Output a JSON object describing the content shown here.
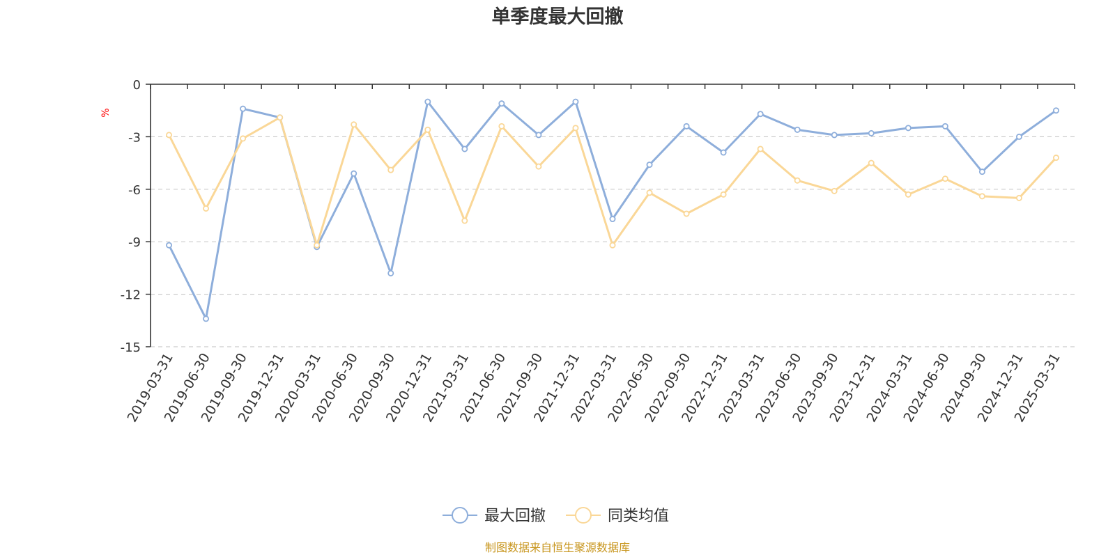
{
  "chart_data": {
    "type": "line",
    "title": "单季度最大回撤",
    "ylabel": "%",
    "ylim": [
      -15,
      0
    ],
    "yticks": [
      0,
      -3,
      -6,
      -9,
      -12,
      -15
    ],
    "grid": true,
    "legend_position": "bottom",
    "categories": [
      "2019-03-31",
      "2019-06-30",
      "2019-09-30",
      "2019-12-31",
      "2020-03-31",
      "2020-06-30",
      "2020-09-30",
      "2020-12-31",
      "2021-03-31",
      "2021-06-30",
      "2021-09-30",
      "2021-12-31",
      "2022-03-31",
      "2022-06-30",
      "2022-09-30",
      "2022-12-31",
      "2023-03-31",
      "2023-06-30",
      "2023-09-30",
      "2023-12-31",
      "2024-03-31",
      "2024-06-30",
      "2024-09-30",
      "2024-12-31",
      "2025-03-31"
    ],
    "series": [
      {
        "name": "最大回撤",
        "color": "#8eaedb",
        "values": [
          -9.2,
          -13.4,
          -1.4,
          -1.9,
          -9.3,
          -5.1,
          -10.8,
          -1.0,
          -3.7,
          -1.1,
          -2.9,
          -1.0,
          -7.7,
          -4.6,
          -2.4,
          -3.9,
          -1.7,
          -2.6,
          -2.9,
          -2.8,
          -2.5,
          -2.4,
          -5.0,
          -3.0,
          -1.5
        ]
      },
      {
        "name": "同类均值",
        "color": "#fad797",
        "values": [
          -2.9,
          -7.1,
          -3.1,
          -1.9,
          -9.2,
          -2.3,
          -4.9,
          -2.6,
          -7.8,
          -2.4,
          -4.7,
          -2.5,
          -9.2,
          -6.2,
          -7.4,
          -6.3,
          -3.7,
          -5.5,
          -6.1,
          -4.5,
          -6.3,
          -5.4,
          -6.4,
          -6.5,
          -4.2
        ]
      }
    ]
  },
  "source_note": "制图数据来自恒生聚源数据库"
}
